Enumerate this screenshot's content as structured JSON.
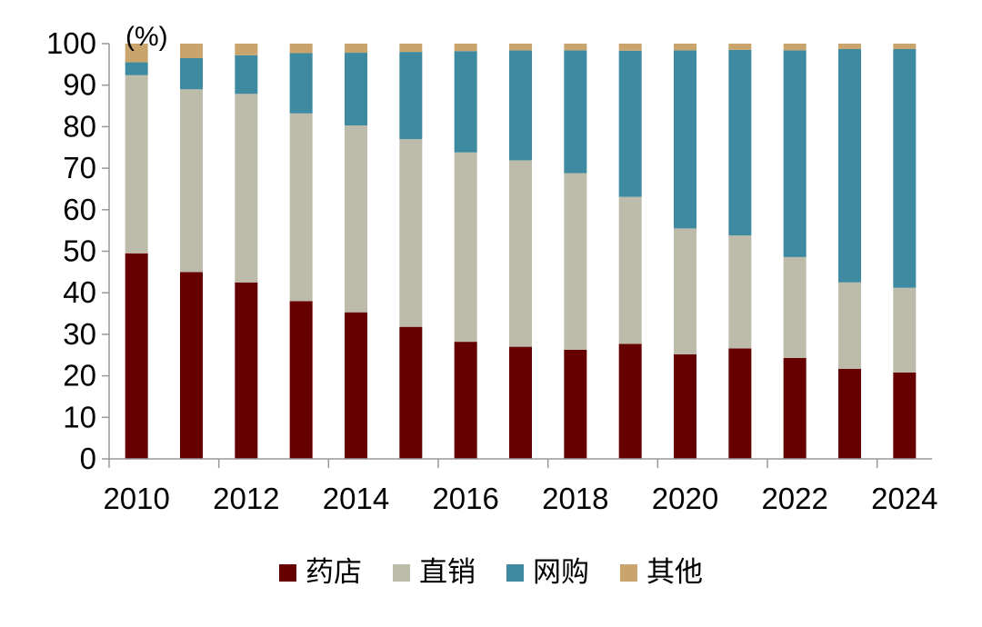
{
  "chart_data": {
    "type": "bar",
    "stacked": true,
    "unit_label": "(%)",
    "x": [
      2010,
      2011,
      2012,
      2013,
      2014,
      2015,
      2016,
      2017,
      2018,
      2019,
      2020,
      2021,
      2022,
      2023,
      2024
    ],
    "x_tick_labels": [
      "2010",
      "2012",
      "2014",
      "2016",
      "2018",
      "2020",
      "2022",
      "2024"
    ],
    "ylim": [
      0,
      100
    ],
    "y_ticks": [
      0,
      10,
      20,
      30,
      40,
      50,
      60,
      70,
      80,
      90,
      100
    ],
    "legend_position": "bottom",
    "grid": false,
    "series": [
      {
        "name": "药店",
        "color": "#660000",
        "values": [
          49.5,
          45,
          42.5,
          38,
          35.3,
          31.8,
          28.2,
          27,
          26.3,
          27.7,
          25.2,
          26.6,
          24.3,
          21.7,
          20.8
        ]
      },
      {
        "name": "直销",
        "color": "#bdbcab",
        "values": [
          42.9,
          44,
          45.4,
          45.2,
          45,
          45.2,
          45.6,
          44.9,
          42.5,
          35.4,
          30.3,
          27.2,
          24.3,
          20.8,
          20.4
        ]
      },
      {
        "name": "网购",
        "color": "#3e8aa0",
        "values": [
          3.1,
          7.5,
          9.3,
          14.5,
          17.5,
          21,
          24.4,
          26.5,
          29.6,
          35.2,
          42.9,
          44.7,
          49.8,
          56.2,
          57.5
        ]
      },
      {
        "name": "其他",
        "color": "#c9a46d",
        "values": [
          4.5,
          3.5,
          2.8,
          2.3,
          2.2,
          2,
          1.8,
          1.6,
          1.6,
          1.7,
          1.6,
          1.5,
          1.6,
          1.3,
          1.3
        ]
      }
    ]
  }
}
